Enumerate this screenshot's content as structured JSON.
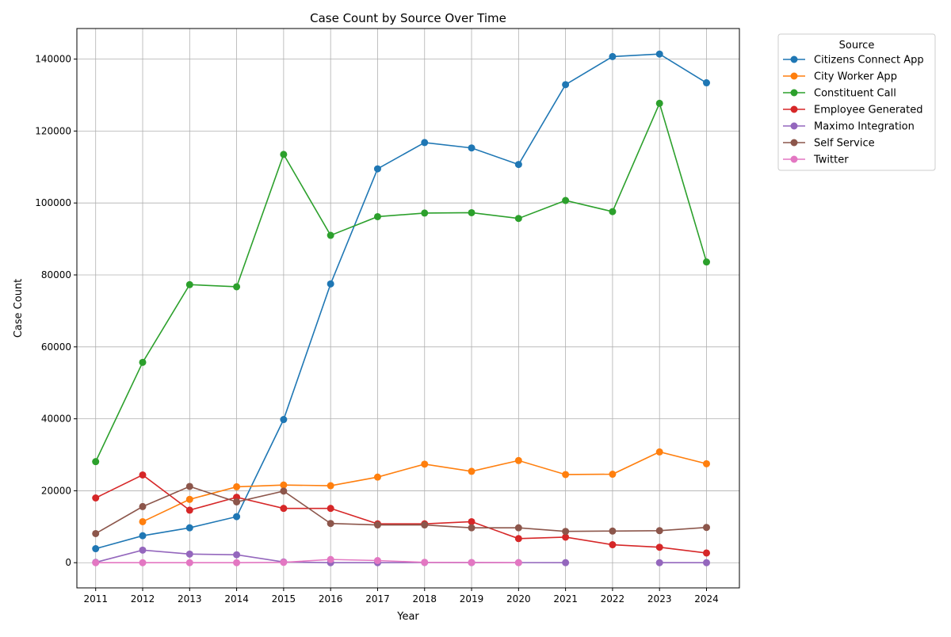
{
  "chart_data": {
    "type": "line",
    "title": "Case Count by Source Over Time",
    "xlabel": "Year",
    "ylabel": "Case Count",
    "x": [
      2011,
      2012,
      2013,
      2014,
      2015,
      2016,
      2017,
      2018,
      2019,
      2020,
      2021,
      2022,
      2023,
      2024
    ],
    "y_ticks": [
      0,
      20000,
      40000,
      60000,
      80000,
      100000,
      120000,
      140000
    ],
    "ylim": [
      -7000,
      148500
    ],
    "xlim": [
      2010.6,
      2024.7
    ],
    "grid": true,
    "legend": {
      "title": "Source",
      "placement": "outside-upper-right"
    },
    "marker": "circle",
    "series": [
      {
        "name": "Citizens Connect App",
        "color": "#1f77b4",
        "values": [
          3900,
          7500,
          9700,
          12800,
          39800,
          77500,
          109500,
          116800,
          115300,
          110700,
          132900,
          140700,
          141400,
          133400
        ]
      },
      {
        "name": "City Worker App",
        "color": "#ff7f0e",
        "values": [
          null,
          11400,
          17600,
          21100,
          21600,
          21400,
          23800,
          27400,
          25400,
          28400,
          24500,
          24600,
          30800,
          27500
        ]
      },
      {
        "name": "Constituent Call",
        "color": "#2ca02c",
        "values": [
          28100,
          55700,
          77300,
          76700,
          113500,
          91000,
          96200,
          97200,
          97300,
          95700,
          100700,
          97600,
          127700,
          83600
        ]
      },
      {
        "name": "Employee Generated",
        "color": "#d62728",
        "values": [
          18000,
          24400,
          14600,
          18200,
          15100,
          15100,
          10800,
          10800,
          11400,
          6700,
          7100,
          5000,
          4300,
          2700
        ]
      },
      {
        "name": "Maximo Integration",
        "color": "#9467bd",
        "values": [
          100,
          3500,
          2400,
          2200,
          200,
          0,
          0,
          50,
          30,
          20,
          10,
          null,
          0,
          0
        ]
      },
      {
        "name": "Self Service",
        "color": "#8c564b",
        "values": [
          8100,
          15600,
          21200,
          16900,
          19900,
          10900,
          10500,
          10500,
          9700,
          9700,
          8700,
          8800,
          8900,
          9800
        ]
      },
      {
        "name": "Twitter",
        "color": "#e377c2",
        "values": [
          0,
          0,
          0,
          0,
          100,
          900,
          600,
          100,
          50,
          20,
          null,
          null,
          null,
          null
        ]
      }
    ]
  }
}
